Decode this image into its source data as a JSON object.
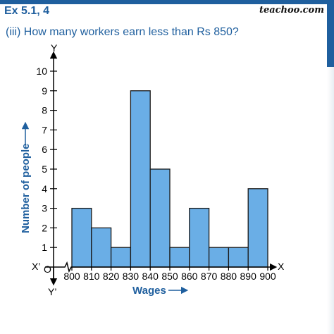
{
  "header": {
    "exercise": "Ex 5.1, 4",
    "brand": "teachoo.com",
    "question": "(iii) How many workers earn less than Rs 850?"
  },
  "colors": {
    "bar_fill": "#6aaee6",
    "bar_stroke": "#1a1a1a",
    "title_blue": "#1f5f9e"
  },
  "chart_data": {
    "type": "bar",
    "bin_edges": [
      800,
      810,
      820,
      830,
      840,
      850,
      860,
      870,
      880,
      890,
      900
    ],
    "categories": [
      "800-810",
      "810-820",
      "820-830",
      "830-840",
      "840-850",
      "850-860",
      "860-870",
      "870-880",
      "880-890",
      "890-900"
    ],
    "values": [
      3,
      2,
      1,
      9,
      5,
      1,
      3,
      1,
      1,
      4
    ],
    "xlabel": "Wages",
    "ylabel": "Number of people",
    "ylim": [
      0,
      10
    ],
    "xlim": [
      800,
      900
    ],
    "y_ticks": [
      1,
      2,
      3,
      4,
      5,
      6,
      7,
      8,
      9,
      10
    ],
    "x_ticks": [
      800,
      810,
      820,
      830,
      840,
      850,
      860,
      870,
      880,
      890,
      900
    ],
    "axis_letters": {
      "x": "X",
      "x_neg": "X’",
      "y": "Y",
      "y_neg": "Y’",
      "origin": "O"
    },
    "grid": false
  }
}
